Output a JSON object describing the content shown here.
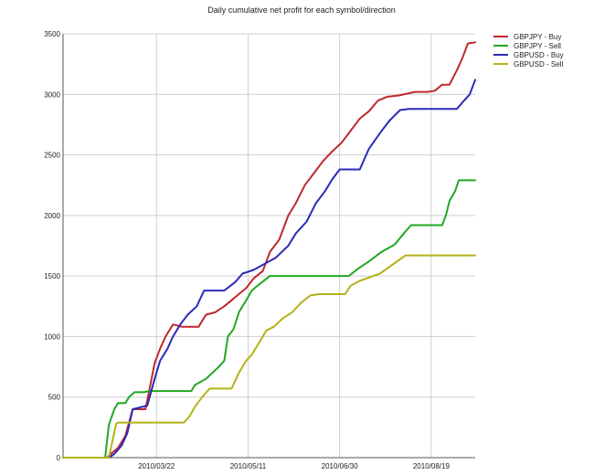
{
  "chart_data": {
    "type": "line",
    "title": "Daily cumulative net profit for each symbol/direction",
    "xlabel": "",
    "ylabel": "",
    "x_ticks": [
      "2010/03/22",
      "2010/05/11",
      "2010/06/30",
      "2010/08/19"
    ],
    "y_ticks": [
      "0",
      "500",
      "1000",
      "1500",
      "2000",
      "2500",
      "3000",
      "3500"
    ],
    "xlim": [
      "2010-01-30",
      "2010-09-12"
    ],
    "ylim": [
      0,
      3500
    ],
    "grid": true,
    "legend_position": "top-right",
    "series": [
      {
        "name": "GBPJPY - Buy",
        "color": "#c0282d",
        "points": [
          [
            "2010-01-30",
            0
          ],
          [
            "2010-02-23",
            0
          ],
          [
            "2010-02-25",
            30
          ],
          [
            "2010-03-01",
            80
          ],
          [
            "2010-03-05",
            180
          ],
          [
            "2010-03-09",
            400
          ],
          [
            "2010-03-16",
            400
          ],
          [
            "2010-03-18",
            550
          ],
          [
            "2010-03-21",
            780
          ],
          [
            "2010-03-24",
            900
          ],
          [
            "2010-03-27",
            1000
          ],
          [
            "2010-03-31",
            1100
          ],
          [
            "2010-04-05",
            1080
          ],
          [
            "2010-04-14",
            1080
          ],
          [
            "2010-04-18",
            1180
          ],
          [
            "2010-04-23",
            1200
          ],
          [
            "2010-04-28",
            1250
          ],
          [
            "2010-05-02",
            1300
          ],
          [
            "2010-05-06",
            1350
          ],
          [
            "2010-05-10",
            1400
          ],
          [
            "2010-05-14",
            1480
          ],
          [
            "2010-05-19",
            1540
          ],
          [
            "2010-05-23",
            1700
          ],
          [
            "2010-05-28",
            1800
          ],
          [
            "2010-06-02",
            2000
          ],
          [
            "2010-06-06",
            2100
          ],
          [
            "2010-06-11",
            2250
          ],
          [
            "2010-06-16",
            2350
          ],
          [
            "2010-06-21",
            2450
          ],
          [
            "2010-06-26",
            2530
          ],
          [
            "2010-07-01",
            2600
          ],
          [
            "2010-07-06",
            2700
          ],
          [
            "2010-07-11",
            2800
          ],
          [
            "2010-07-16",
            2860
          ],
          [
            "2010-07-21",
            2950
          ],
          [
            "2010-07-26",
            2980
          ],
          [
            "2010-08-01",
            2990
          ],
          [
            "2010-08-10",
            3020
          ],
          [
            "2010-08-17",
            3020
          ],
          [
            "2010-08-21",
            3030
          ],
          [
            "2010-08-25",
            3080
          ],
          [
            "2010-08-29",
            3080
          ],
          [
            "2010-09-02",
            3200
          ],
          [
            "2010-09-05",
            3300
          ],
          [
            "2010-09-08",
            3420
          ],
          [
            "2010-09-12",
            3430
          ]
        ]
      },
      {
        "name": "GBPJPY - Sell",
        "color": "#22a722",
        "points": [
          [
            "2010-01-30",
            0
          ],
          [
            "2010-02-22",
            0
          ],
          [
            "2010-02-24",
            270
          ],
          [
            "2010-02-27",
            400
          ],
          [
            "2010-03-01",
            450
          ],
          [
            "2010-03-05",
            450
          ],
          [
            "2010-03-07",
            500
          ],
          [
            "2010-03-10",
            540
          ],
          [
            "2010-03-15",
            540
          ],
          [
            "2010-03-18",
            550
          ],
          [
            "2010-04-10",
            550
          ],
          [
            "2010-04-12",
            600
          ],
          [
            "2010-04-18",
            650
          ],
          [
            "2010-04-25",
            750
          ],
          [
            "2010-04-28",
            800
          ],
          [
            "2010-04-30",
            1000
          ],
          [
            "2010-05-03",
            1060
          ],
          [
            "2010-05-06",
            1200
          ],
          [
            "2010-05-10",
            1300
          ],
          [
            "2010-05-13",
            1380
          ],
          [
            "2010-05-17",
            1430
          ],
          [
            "2010-05-23",
            1500
          ],
          [
            "2010-07-05",
            1500
          ],
          [
            "2010-07-10",
            1560
          ],
          [
            "2010-07-16",
            1620
          ],
          [
            "2010-07-23",
            1700
          ],
          [
            "2010-07-30",
            1760
          ],
          [
            "2010-08-04",
            1850
          ],
          [
            "2010-08-08",
            1920
          ],
          [
            "2010-08-25",
            1920
          ],
          [
            "2010-08-27",
            2000
          ],
          [
            "2010-08-29",
            2120
          ],
          [
            "2010-09-01",
            2200
          ],
          [
            "2010-09-03",
            2290
          ],
          [
            "2010-09-12",
            2290
          ]
        ]
      },
      {
        "name": "GBPUSD - Buy",
        "color": "#2b2bb8",
        "points": [
          [
            "2010-01-30",
            0
          ],
          [
            "2010-02-24",
            0
          ],
          [
            "2010-02-27",
            30
          ],
          [
            "2010-03-03",
            100
          ],
          [
            "2010-03-06",
            200
          ],
          [
            "2010-03-09",
            400
          ],
          [
            "2010-03-17",
            430
          ],
          [
            "2010-03-21",
            650
          ],
          [
            "2010-03-24",
            800
          ],
          [
            "2010-03-28",
            900
          ],
          [
            "2010-03-31",
            1000
          ],
          [
            "2010-04-04",
            1100
          ],
          [
            "2010-04-08",
            1180
          ],
          [
            "2010-04-13",
            1250
          ],
          [
            "2010-04-17",
            1380
          ],
          [
            "2010-04-28",
            1380
          ],
          [
            "2010-05-04",
            1450
          ],
          [
            "2010-05-08",
            1520
          ],
          [
            "2010-05-14",
            1550
          ],
          [
            "2010-05-20",
            1600
          ],
          [
            "2010-05-26",
            1650
          ],
          [
            "2010-06-02",
            1750
          ],
          [
            "2010-06-06",
            1850
          ],
          [
            "2010-06-12",
            1950
          ],
          [
            "2010-06-17",
            2100
          ],
          [
            "2010-06-22",
            2200
          ],
          [
            "2010-06-26",
            2300
          ],
          [
            "2010-06-30",
            2380
          ],
          [
            "2010-07-11",
            2380
          ],
          [
            "2010-07-16",
            2550
          ],
          [
            "2010-07-22",
            2680
          ],
          [
            "2010-07-27",
            2780
          ],
          [
            "2010-08-02",
            2870
          ],
          [
            "2010-08-07",
            2880
          ],
          [
            "2010-09-02",
            2880
          ],
          [
            "2010-09-06",
            2950
          ],
          [
            "2010-09-09",
            3000
          ],
          [
            "2010-09-12",
            3120
          ]
        ]
      },
      {
        "name": "GBPUSD - Sell",
        "color": "#b5b21a",
        "points": [
          [
            "2010-01-30",
            0
          ],
          [
            "2010-02-24",
            0
          ],
          [
            "2010-02-26",
            140
          ],
          [
            "2010-02-28",
            280
          ],
          [
            "2010-03-01",
            290
          ],
          [
            "2010-04-06",
            290
          ],
          [
            "2010-04-09",
            340
          ],
          [
            "2010-04-12",
            420
          ],
          [
            "2010-04-16",
            500
          ],
          [
            "2010-04-20",
            570
          ],
          [
            "2010-05-02",
            570
          ],
          [
            "2010-05-06",
            700
          ],
          [
            "2010-05-10",
            800
          ],
          [
            "2010-05-13",
            850
          ],
          [
            "2010-05-17",
            950
          ],
          [
            "2010-05-21",
            1050
          ],
          [
            "2010-05-25",
            1080
          ],
          [
            "2010-05-30",
            1150
          ],
          [
            "2010-06-04",
            1200
          ],
          [
            "2010-06-09",
            1280
          ],
          [
            "2010-06-14",
            1340
          ],
          [
            "2010-06-19",
            1350
          ],
          [
            "2010-07-03",
            1350
          ],
          [
            "2010-07-06",
            1420
          ],
          [
            "2010-07-11",
            1460
          ],
          [
            "2010-07-22",
            1520
          ],
          [
            "2010-08-05",
            1670
          ],
          [
            "2010-09-12",
            1670
          ]
        ]
      }
    ]
  }
}
